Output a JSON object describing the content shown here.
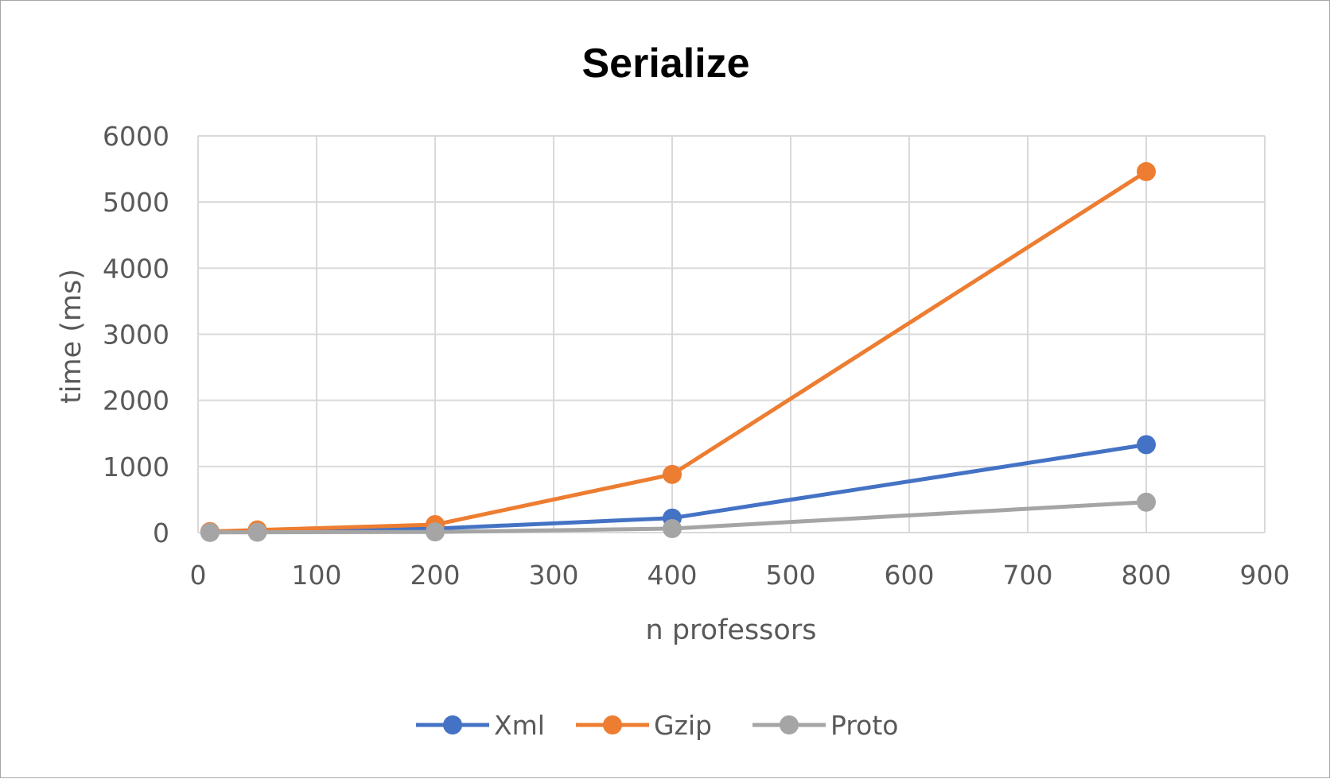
{
  "chart_data": {
    "type": "line",
    "title": "Serialize",
    "xlabel": "n professors",
    "ylabel": "time (ms)",
    "xlim": [
      0,
      900
    ],
    "ylim": [
      0,
      6000
    ],
    "xticks": [
      0,
      100,
      200,
      300,
      400,
      500,
      600,
      700,
      800,
      900
    ],
    "yticks": [
      0,
      1000,
      2000,
      3000,
      4000,
      5000,
      6000
    ],
    "grid": true,
    "legend_position": "bottom",
    "x": [
      10,
      50,
      200,
      400,
      800
    ],
    "series": [
      {
        "name": "Xml",
        "color": "#4472c4",
        "values": [
          5,
          15,
          60,
          220,
          1330
        ]
      },
      {
        "name": "Gzip",
        "color": "#ed7d31",
        "values": [
          15,
          40,
          120,
          880,
          5460
        ]
      },
      {
        "name": "Proto",
        "color": "#a5a5a5",
        "values": [
          2,
          5,
          10,
          60,
          460
        ]
      }
    ]
  }
}
